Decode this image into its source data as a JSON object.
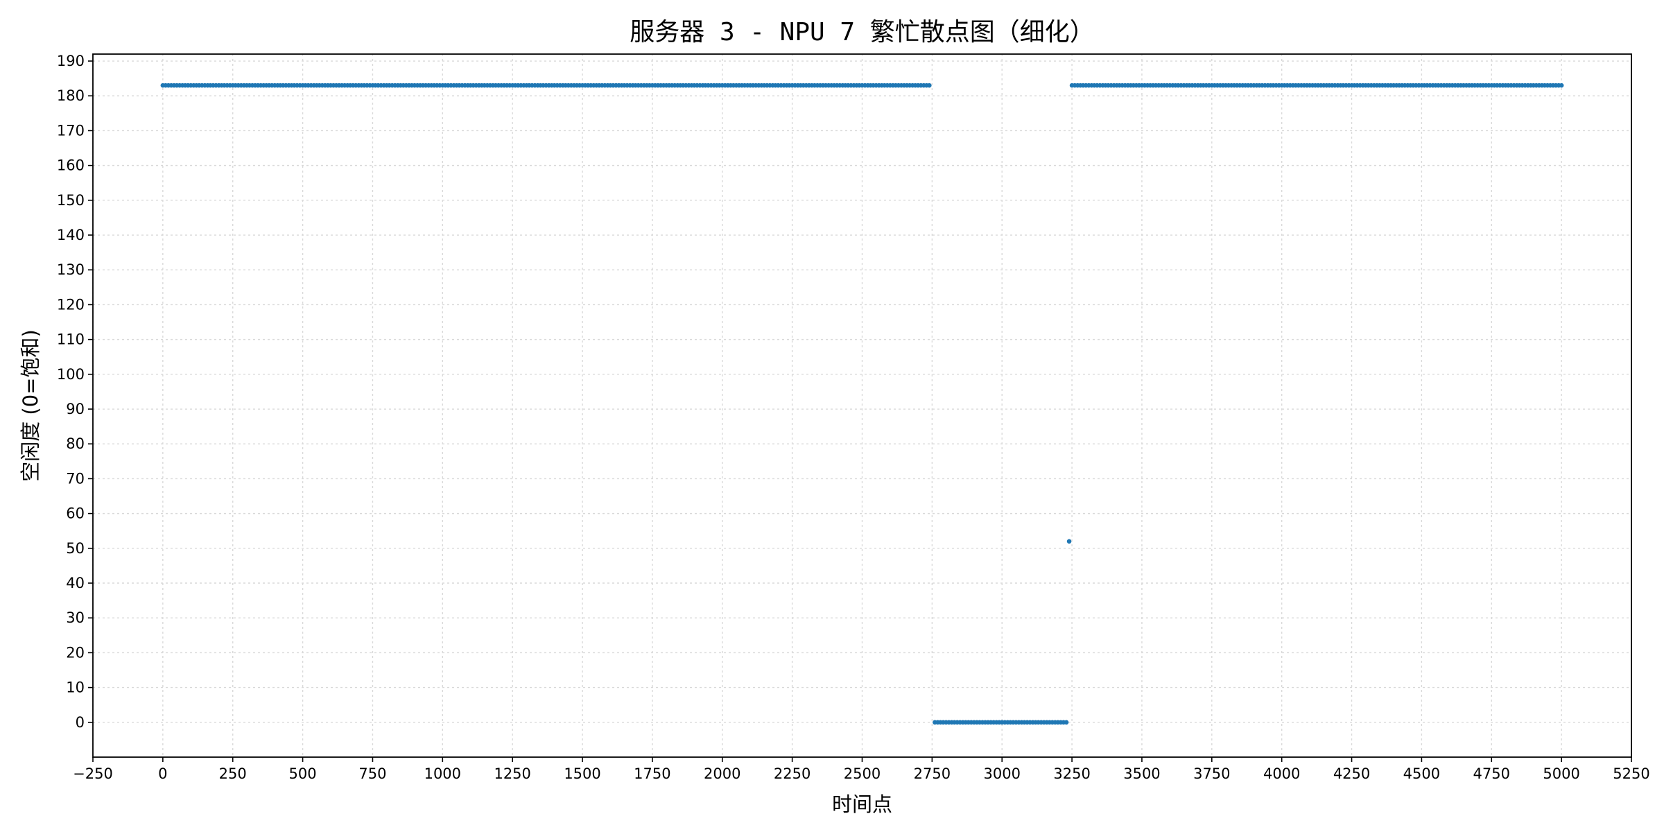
{
  "chart_data": {
    "type": "scatter",
    "title": "服务器 3 - NPU 7 繁忙散点图（细化）",
    "xlabel": "时间点",
    "ylabel": "空闲度 (0=饱和)",
    "xlim": [
      -250,
      5250
    ],
    "ylim": [
      -10,
      192
    ],
    "xticks": [
      -250,
      0,
      250,
      500,
      750,
      1000,
      1250,
      1500,
      1750,
      2000,
      2250,
      2500,
      2750,
      3000,
      3250,
      3500,
      3750,
      4000,
      4250,
      4500,
      4750,
      5000,
      5250
    ],
    "xtick_labels": [
      "−250",
      "0",
      "250",
      "500",
      "750",
      "1000",
      "1250",
      "1500",
      "1750",
      "2000",
      "2250",
      "2500",
      "2750",
      "3000",
      "3250",
      "3500",
      "3750",
      "4000",
      "4250",
      "4500",
      "4750",
      "5000",
      "5250"
    ],
    "yticks": [
      0,
      10,
      20,
      30,
      40,
      50,
      60,
      70,
      80,
      90,
      100,
      110,
      120,
      130,
      140,
      150,
      160,
      170,
      180,
      190
    ],
    "ytick_labels": [
      "0",
      "10",
      "20",
      "30",
      "40",
      "50",
      "60",
      "70",
      "80",
      "90",
      "100",
      "110",
      "120",
      "130",
      "140",
      "150",
      "160",
      "170",
      "180",
      "190"
    ],
    "grid": true,
    "marker_color": "#1f77b4",
    "series": [
      {
        "segments": [
          {
            "x_start": 0,
            "x_end": 2740,
            "x_step": 10,
            "y": 183
          },
          {
            "x_start": 2760,
            "x_end": 3230,
            "x_step": 10,
            "y": 0
          },
          {
            "x_start": 3240,
            "x_end": 3240,
            "x_step": 10,
            "y": 52
          },
          {
            "x_start": 3250,
            "x_end": 5000,
            "x_step": 10,
            "y": 183
          }
        ]
      }
    ]
  }
}
